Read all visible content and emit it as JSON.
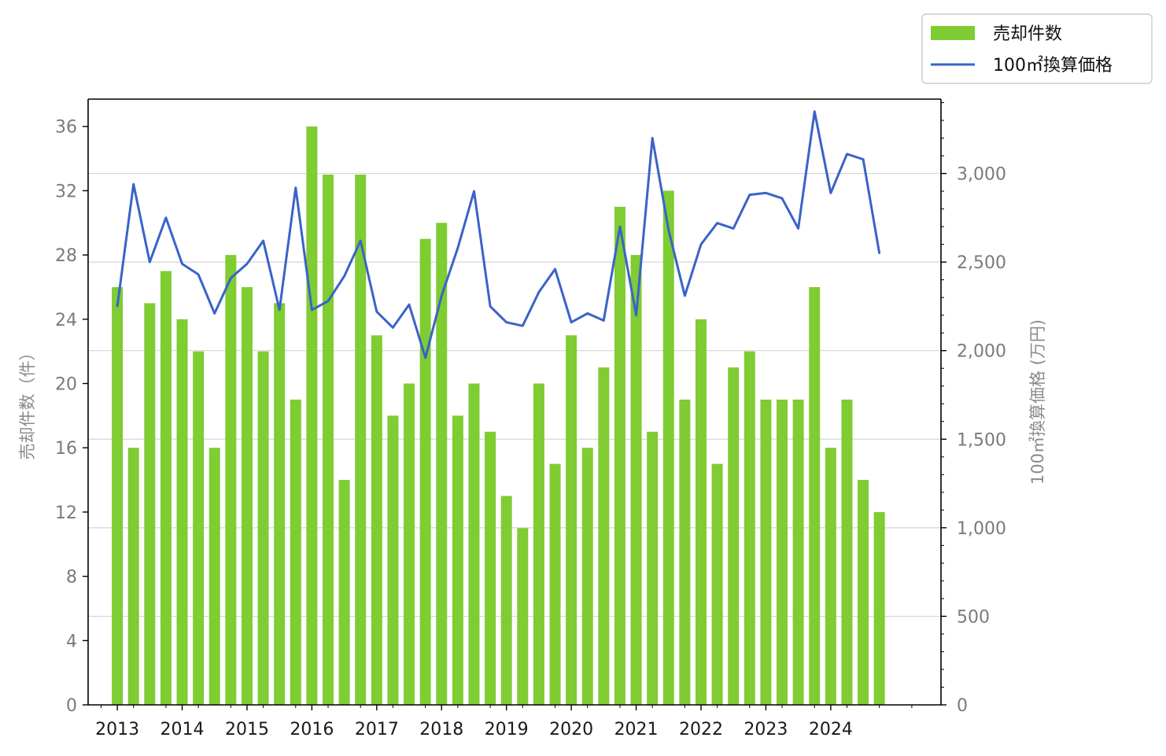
{
  "colors": {
    "bar": "#7fcc33",
    "line": "#3a63c8",
    "grid": "#d6d6d6",
    "axis": "#000000"
  },
  "legend": {
    "bar_label": "売却件数",
    "line_label": "100㎡換算価格",
    "placement": "top-right"
  },
  "chart_data": {
    "type": "bar",
    "ylabel": "売却件数（件）",
    "y2label": "100㎡換算価格 (万円)",
    "ylim": [
      0,
      37.7
    ],
    "y2lim": [
      0,
      3420
    ],
    "yticks": [
      0,
      4,
      8,
      12,
      16,
      20,
      24,
      28,
      32,
      36
    ],
    "ytick_labels": [
      "0",
      "4",
      "8",
      "12",
      "16",
      "20",
      "24",
      "28",
      "32",
      "36"
    ],
    "y2ticks": [
      0,
      500,
      1000,
      1500,
      2000,
      2500,
      3000
    ],
    "y2tick_labels": [
      "0",
      "500",
      "1,000",
      "1,500",
      "2,000",
      "2,500",
      "3,000"
    ],
    "xlim": [
      2012.55,
      2025.7
    ],
    "xticks": [
      2013,
      2014,
      2015,
      2016,
      2017,
      2018,
      2019,
      2020,
      2021,
      2022,
      2023,
      2024
    ],
    "xtick_labels": [
      "2013",
      "2014",
      "2015",
      "2016",
      "2017",
      "2018",
      "2019",
      "2020",
      "2021",
      "2022",
      "2023",
      "2024"
    ],
    "grid": "horizontal, right axis",
    "x": [
      2013,
      2013.25,
      2013.5,
      2013.75,
      2014,
      2014.25,
      2014.5,
      2014.75,
      2015,
      2015.25,
      2015.5,
      2015.75,
      2016,
      2016.25,
      2016.5,
      2016.75,
      2017,
      2017.25,
      2017.5,
      2017.75,
      2018,
      2018.25,
      2018.5,
      2018.75,
      2019,
      2019.25,
      2019.5,
      2019.75,
      2020,
      2020.25,
      2020.5,
      2020.75,
      2021,
      2021.25,
      2021.5,
      2021.75,
      2022,
      2022.25,
      2022.5,
      2022.75,
      2023,
      2023.25,
      2023.5,
      2023.75,
      2024,
      2024.25,
      2024.5,
      2024.75
    ],
    "series": [
      {
        "name": "売却件数",
        "type": "bar",
        "axis": "left",
        "values": [
          26,
          16,
          25,
          27,
          24,
          22,
          16,
          28,
          26,
          22,
          25,
          19,
          36,
          33,
          14,
          33,
          23,
          18,
          20,
          29,
          30,
          18,
          20,
          17,
          13,
          11,
          20,
          15,
          23,
          16,
          21,
          31,
          28,
          17,
          32,
          19,
          24,
          15,
          21,
          22,
          19,
          19,
          19,
          26,
          16,
          19,
          14,
          12
        ]
      },
      {
        "name": "100㎡換算価格",
        "type": "line",
        "axis": "right",
        "values": [
          2250,
          2940,
          2500,
          2750,
          2490,
          2430,
          2210,
          2410,
          2490,
          2620,
          2230,
          2920,
          2230,
          2280,
          2420,
          2620,
          2220,
          2130,
          2260,
          1960,
          2310,
          2580,
          2900,
          2250,
          2160,
          2140,
          2330,
          2460,
          2160,
          2210,
          2170,
          2700,
          2200,
          3200,
          2680,
          2310,
          2600,
          2720,
          2690,
          2880,
          2890,
          2860,
          2690,
          3350,
          2890,
          3110,
          3080,
          2550
        ]
      }
    ]
  }
}
